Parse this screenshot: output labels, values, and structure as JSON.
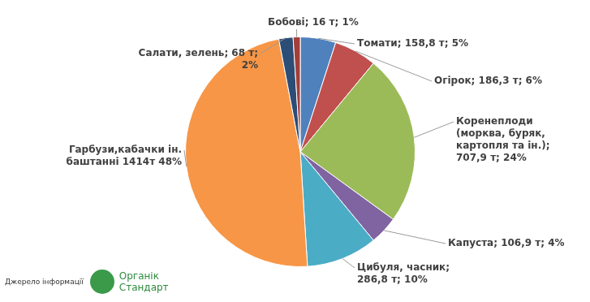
{
  "chart_data": {
    "type": "pie",
    "categories": [
      "Томати; 158,8 т; 5%",
      "Огірок; 186,3 т; 6%",
      "Коренеплоди (морква, буряк, картопля та ін.); 707,9 т; 24%",
      "Капуста; 106,9 т; 4%",
      "Цибуля, часник; 286,8 т; 10%",
      "Гарбузи,кабачки ін. баштанні 1414т 48%",
      "Салати, зелень; 68 т; 2%",
      "Бобові; 16 т; 1%"
    ],
    "values": [
      5,
      6,
      24,
      4,
      10,
      48,
      2,
      1
    ],
    "colors": [
      "#4f81bd",
      "#c0504d",
      "#9bbb59",
      "#8064a2",
      "#4bacc6",
      "#f79646",
      "#2c4d75",
      "#a33e3a"
    ],
    "source_label": "Джерело інформації",
    "source_name": "Органік Стандарт"
  }
}
